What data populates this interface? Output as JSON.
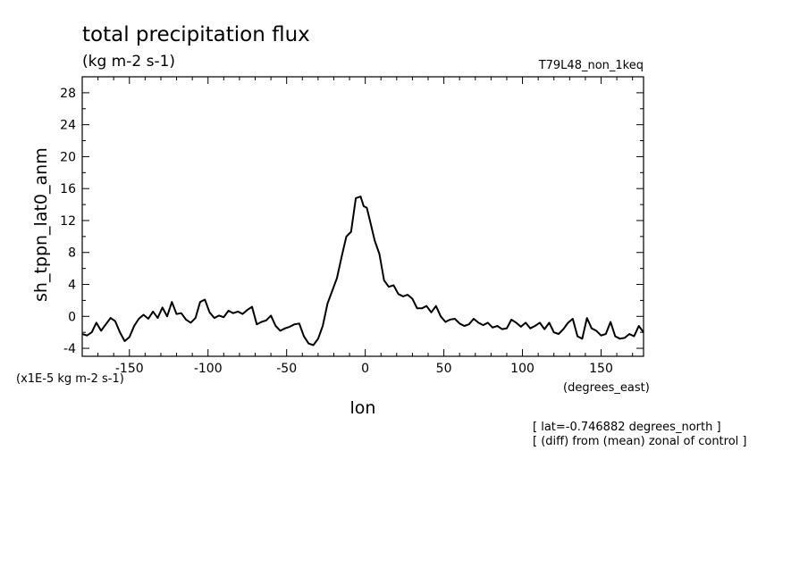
{
  "chart_data": {
    "type": "line",
    "title": "total precipitation flux",
    "units": "(kg m-2 s-1)",
    "experiment": "T79L48_non_1keq",
    "xlabel": "lon",
    "x_units": "(degrees_east)",
    "ylabel": "sh_tppn_lat0_anm",
    "y_scale_label": "(x1E-5 kg m-2 s-1)",
    "notes": [
      "[ lat=-0.746882 degrees_north ]",
      "[ (diff) from (mean) zonal of control ]"
    ],
    "xlim": [
      -180,
      177
    ],
    "ylim": [
      -5,
      30
    ],
    "x_ticks": [
      -150,
      -100,
      -50,
      0,
      50,
      100,
      150
    ],
    "x_tick_labels": [
      "-150",
      "-100",
      "-50",
      "0",
      "50",
      "100",
      "150"
    ],
    "y_ticks": [
      -4,
      0,
      4,
      8,
      12,
      16,
      20,
      24,
      28
    ],
    "y_tick_labels": [
      "-4",
      "0",
      "4",
      "8",
      "12",
      "16",
      "20",
      "24",
      "28"
    ],
    "grid": false,
    "series": [
      {
        "x": [
          -180,
          -177,
          -174,
          -171,
          -168,
          -165,
          -162,
          -159,
          -156,
          -153,
          -150,
          -147,
          -144,
          -141,
          -138,
          -135,
          -132,
          -129,
          -126,
          -123,
          -120,
          -117,
          -114,
          -111,
          -108,
          -105,
          -102,
          -99,
          -96,
          -93,
          -90,
          -87,
          -84,
          -81,
          -78,
          -75,
          -72,
          -69,
          -66,
          -63,
          -60,
          -57,
          -54,
          -51,
          -48,
          -45,
          -42,
          -39,
          -36,
          -33,
          -30,
          -27,
          -24,
          -21,
          -18,
          -15,
          -12,
          -9,
          -6,
          -3,
          -1,
          1,
          3,
          6,
          9,
          12,
          15,
          18,
          21,
          24,
          27,
          30,
          33,
          36,
          39,
          42,
          45,
          48,
          51,
          54,
          57,
          60,
          63,
          66,
          69,
          72,
          75,
          78,
          81,
          84,
          87,
          90,
          93,
          96,
          99,
          102,
          105,
          108,
          111,
          114,
          117,
          120,
          123,
          126,
          129,
          132,
          135,
          138,
          141,
          144,
          147,
          150,
          153,
          156,
          159,
          162,
          165,
          168,
          171,
          174,
          177
        ],
        "y": [
          -2.2,
          -2.4,
          -2.0,
          -0.8,
          -1.8,
          -1.0,
          -0.2,
          -0.6,
          -2.0,
          -3.1,
          -2.6,
          -1.2,
          -0.3,
          0.2,
          -0.3,
          0.6,
          -0.2,
          1.1,
          0.0,
          1.8,
          0.3,
          0.4,
          -0.4,
          -0.8,
          -0.2,
          1.8,
          2.1,
          0.5,
          -0.2,
          0.1,
          -0.1,
          0.7,
          0.4,
          0.6,
          0.3,
          0.8,
          1.2,
          -1.0,
          -0.7,
          -0.5,
          0.1,
          -1.2,
          -1.8,
          -1.5,
          -1.3,
          -1.0,
          -0.9,
          -2.5,
          -3.4,
          -3.6,
          -2.8,
          -1.2,
          1.6,
          3.2,
          4.8,
          7.5,
          10.0,
          10.6,
          14.8,
          15.0,
          13.8,
          13.6,
          12.0,
          9.5,
          7.8,
          4.5,
          3.7,
          3.9,
          2.8,
          2.5,
          2.7,
          2.2,
          1.0,
          1.0,
          1.3,
          0.5,
          1.3,
          0.0,
          -0.7,
          -0.4,
          -0.3,
          -0.9,
          -1.2,
          -1.0,
          -0.3,
          -0.8,
          -1.1,
          -0.8,
          -1.4,
          -1.2,
          -1.6,
          -1.5,
          -0.4,
          -0.8,
          -1.3,
          -0.8,
          -1.5,
          -1.2,
          -0.8,
          -1.6,
          -0.8,
          -2.0,
          -2.2,
          -1.6,
          -0.8,
          -0.3,
          -2.5,
          -2.8,
          -0.2,
          -1.5,
          -1.8,
          -2.4,
          -2.2,
          -0.7,
          -2.5,
          -2.8,
          -2.7,
          -2.2,
          -2.5,
          -1.2,
          -2.0
        ]
      }
    ]
  }
}
